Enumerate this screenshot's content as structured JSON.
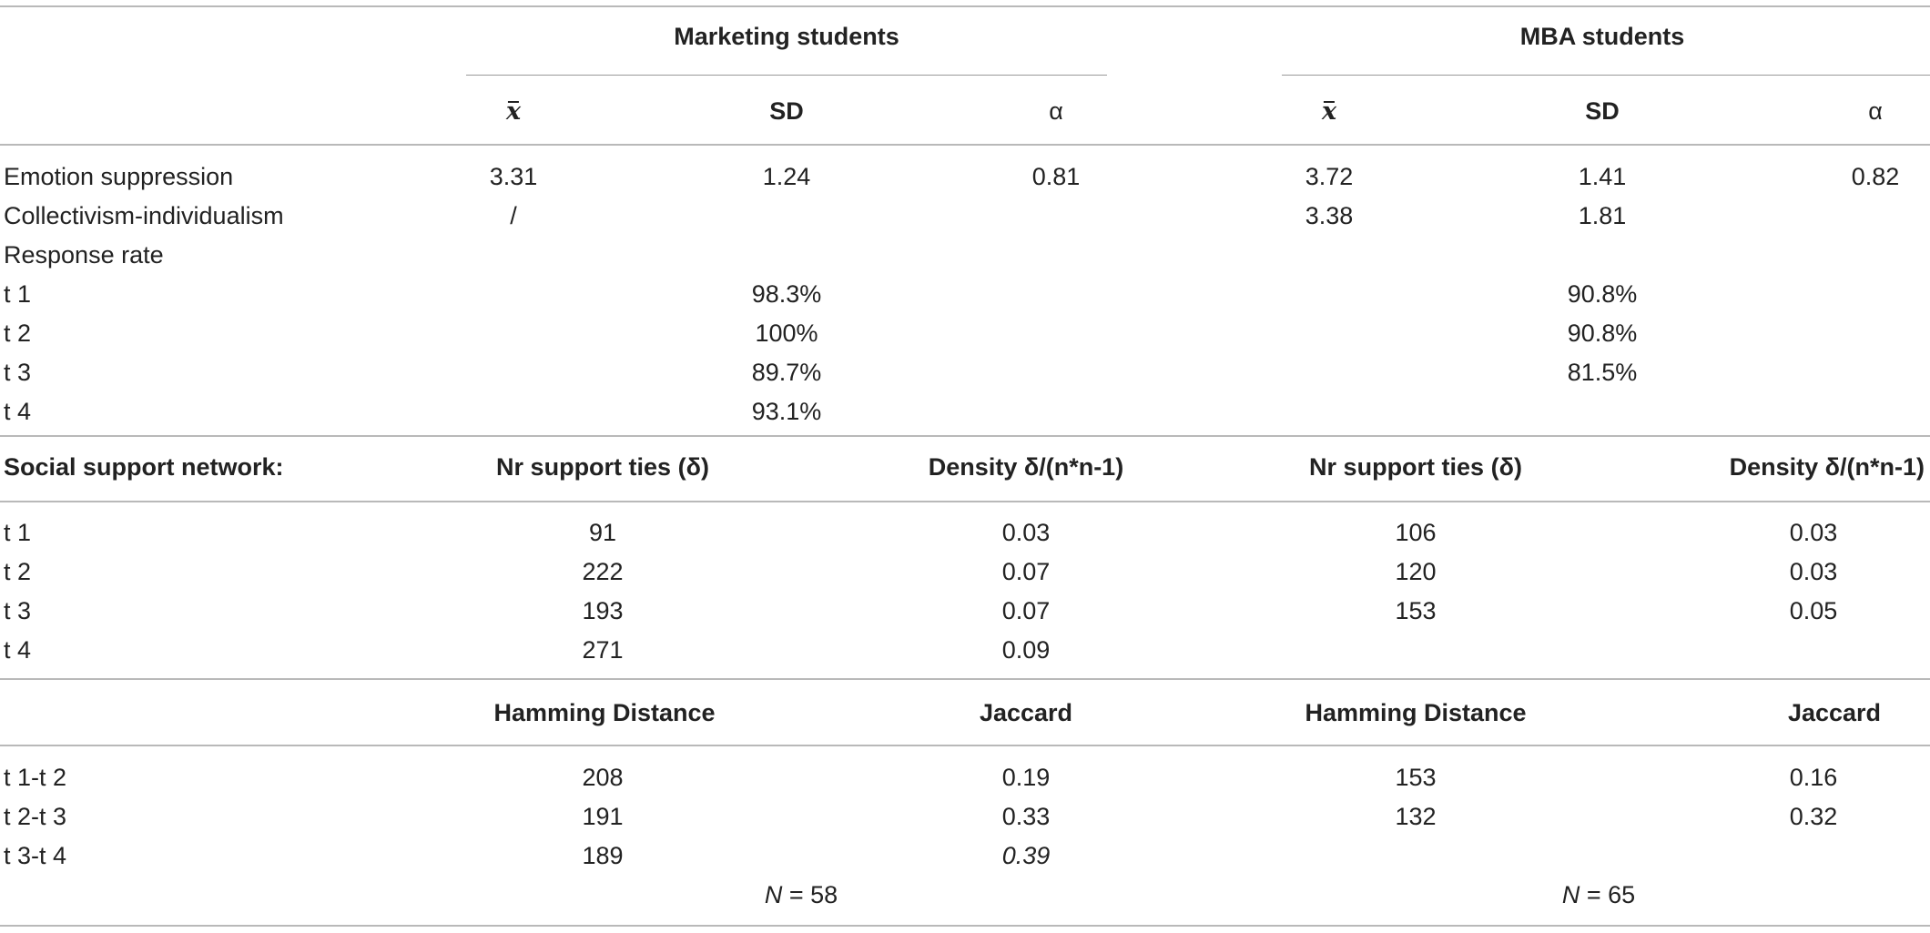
{
  "groups": {
    "marketing": "Marketing students",
    "mba": "MBA students"
  },
  "stat_headers": {
    "mean": "x",
    "sd": "SD",
    "alpha": "α"
  },
  "stats_rows": [
    {
      "label": "Emotion suppression",
      "m_mean": "3.31",
      "m_sd": "1.24",
      "m_alpha": "0.81",
      "b_mean": "3.72",
      "b_sd": "1.41",
      "b_alpha": "0.82"
    },
    {
      "label": "Collectivism-individualism",
      "m_mean": "/",
      "m_sd": "",
      "m_alpha": "",
      "b_mean": "3.38",
      "b_sd": "1.81",
      "b_alpha": ""
    },
    {
      "label": "Response rate",
      "m_mean": "",
      "m_sd": "",
      "m_alpha": "",
      "b_mean": "",
      "b_sd": "",
      "b_alpha": ""
    }
  ],
  "response_rows": [
    {
      "label": "t 1",
      "marketing": "98.3%",
      "mba": "90.8%"
    },
    {
      "label": "t 2",
      "marketing": "100%",
      "mba": "90.8%"
    },
    {
      "label": "t 3",
      "marketing": "89.7%",
      "mba": "81.5%"
    },
    {
      "label": "t 4",
      "marketing": "93.1%",
      "mba": ""
    }
  ],
  "network": {
    "title": "Social support network:",
    "ties_header": "Nr support ties (δ)",
    "density_header": "Density δ/(n*n-1)",
    "rows": [
      {
        "label": "t 1",
        "m_ties": "91",
        "m_density": "0.03",
        "b_ties": "106",
        "b_density": "0.03"
      },
      {
        "label": "t 2",
        "m_ties": "222",
        "m_density": "0.07",
        "b_ties": "120",
        "b_density": "0.03"
      },
      {
        "label": "t 3",
        "m_ties": "193",
        "m_density": "0.07",
        "b_ties": "153",
        "b_density": "0.05"
      },
      {
        "label": "t 4",
        "m_ties": "271",
        "m_density": "0.09",
        "b_ties": "",
        "b_density": ""
      }
    ]
  },
  "distance": {
    "hamming_header": "Hamming Distance",
    "jaccard_header": "Jaccard",
    "rows": [
      {
        "label": "t 1-t 2",
        "m_hamming": "208",
        "m_jaccard": "0.19",
        "b_hamming": "153",
        "b_jaccard": "0.16"
      },
      {
        "label": "t 2-t 3",
        "m_hamming": "191",
        "m_jaccard": "0.33",
        "b_hamming": "132",
        "b_jaccard": "0.32"
      },
      {
        "label": "t 3-t 4",
        "m_hamming": "189",
        "m_jaccard": "0.39",
        "b_hamming": "",
        "b_jaccard": ""
      }
    ]
  },
  "sample_size": {
    "n_symbol": "N",
    "marketing": "= 58",
    "mba": "= 65"
  }
}
